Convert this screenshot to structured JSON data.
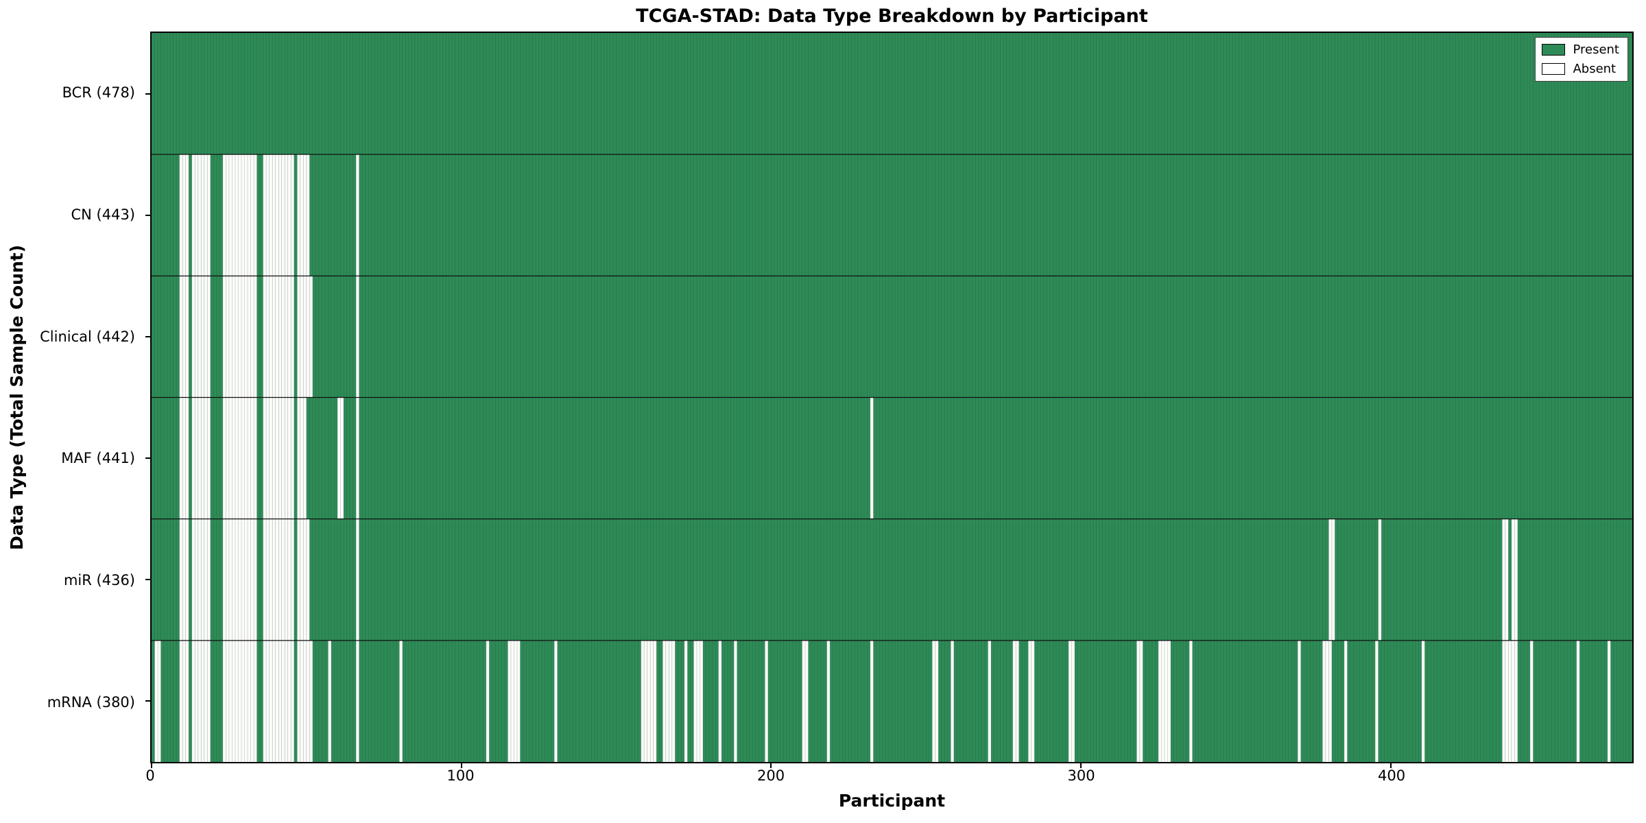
{
  "title": "TCGA-STAD: Data Type Breakdown by Participant",
  "chart_data": {
    "type": "heatmap",
    "title": "TCGA-STAD: Data Type Breakdown by Participant",
    "xlabel": "Participant",
    "ylabel": "Data Type (Total Sample Count)",
    "xlim": [
      0,
      478
    ],
    "n_participants": 478,
    "x_ticks": [
      0,
      100,
      200,
      300,
      400
    ],
    "grid": false,
    "legend_position": "upper right",
    "present_color": "#2e8b57",
    "absent_color": "#fcfcfa",
    "legend": [
      {
        "label": "Present",
        "color": "#2e8b57"
      },
      {
        "label": "Absent",
        "color": "#ffffff"
      }
    ],
    "rows": [
      {
        "label": "BCR (478)",
        "name": "BCR",
        "count": 478,
        "absent_indices": []
      },
      {
        "label": "CN (443)",
        "name": "CN",
        "count": 443,
        "absent_indices": [
          9,
          10,
          11,
          13,
          14,
          15,
          16,
          17,
          18,
          23,
          24,
          25,
          26,
          27,
          28,
          29,
          30,
          31,
          32,
          33,
          36,
          37,
          38,
          39,
          40,
          41,
          42,
          43,
          44,
          45,
          47,
          48,
          49,
          50,
          66
        ]
      },
      {
        "label": "Clinical (442)",
        "name": "Clinical",
        "count": 442,
        "absent_indices": [
          9,
          10,
          11,
          13,
          14,
          15,
          16,
          17,
          18,
          23,
          24,
          25,
          26,
          27,
          28,
          29,
          30,
          31,
          32,
          33,
          36,
          37,
          38,
          39,
          40,
          41,
          42,
          43,
          44,
          45,
          47,
          48,
          49,
          50,
          51,
          66
        ]
      },
      {
        "label": "MAF (441)",
        "name": "MAF",
        "count": 441,
        "absent_indices": [
          9,
          10,
          11,
          13,
          14,
          15,
          16,
          17,
          18,
          23,
          24,
          25,
          26,
          27,
          28,
          29,
          30,
          31,
          32,
          33,
          36,
          37,
          38,
          39,
          40,
          41,
          42,
          43,
          44,
          45,
          47,
          48,
          49,
          60,
          61,
          66,
          232
        ]
      },
      {
        "label": "miR (436)",
        "name": "miR",
        "count": 436,
        "absent_indices": [
          9,
          10,
          11,
          13,
          14,
          15,
          16,
          17,
          18,
          23,
          24,
          25,
          26,
          27,
          28,
          29,
          30,
          31,
          32,
          33,
          36,
          37,
          38,
          39,
          40,
          41,
          42,
          43,
          44,
          45,
          47,
          48,
          49,
          50,
          66,
          380,
          381,
          396,
          436,
          437,
          439,
          440
        ]
      },
      {
        "label": "mRNA (380)",
        "name": "mRNA",
        "count": 380,
        "absent_indices": [
          1,
          2,
          9,
          10,
          11,
          13,
          14,
          15,
          16,
          17,
          18,
          23,
          24,
          25,
          26,
          27,
          28,
          29,
          30,
          31,
          32,
          33,
          36,
          37,
          38,
          39,
          40,
          41,
          42,
          43,
          44,
          45,
          47,
          48,
          49,
          50,
          51,
          57,
          66,
          80,
          108,
          115,
          116,
          117,
          118,
          130,
          158,
          159,
          160,
          161,
          162,
          165,
          166,
          167,
          168,
          172,
          175,
          176,
          177,
          183,
          188,
          198,
          210,
          211,
          218,
          232,
          252,
          253,
          258,
          270,
          278,
          279,
          283,
          284,
          296,
          297,
          318,
          319,
          325,
          326,
          327,
          328,
          335,
          370,
          378,
          379,
          380,
          385,
          395,
          410,
          436,
          437,
          438,
          439,
          440,
          445,
          460,
          470
        ]
      }
    ]
  }
}
